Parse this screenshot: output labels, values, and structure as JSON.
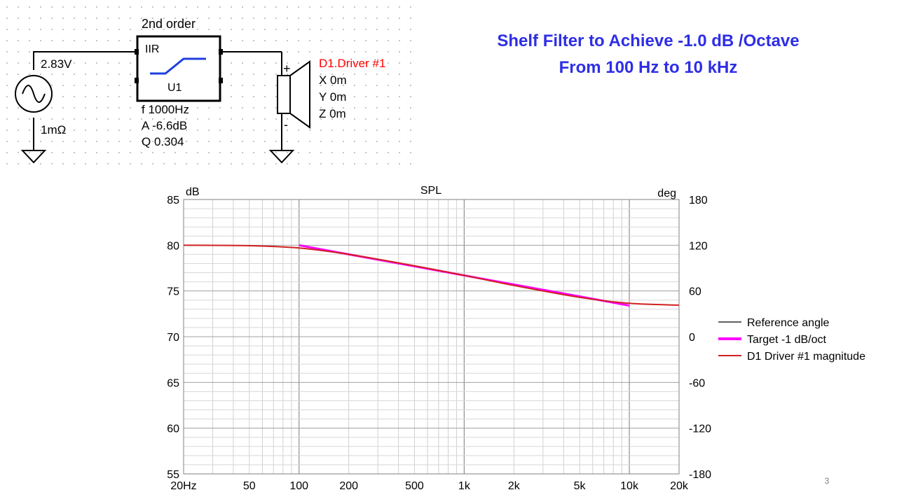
{
  "slide": {
    "title_line1": "Shelf Filter to Achieve -1.0 dB /Octave",
    "title_line2": "From 100 Hz to 10 kHz",
    "page_number": "3"
  },
  "schematic": {
    "filter_order_label": "2nd order",
    "filter_type_label": "IIR",
    "filter_ref": "U1",
    "filter_params": [
      "f  1000Hz",
      "A  -6.6dB",
      "Q  0.304"
    ],
    "source_voltage": "2.83V",
    "source_impedance": "1mΩ",
    "driver_name": "D1.Driver #1",
    "driver_coords": [
      "X  0m",
      "Y  0m",
      "Z  0m"
    ],
    "plus_sign": "+",
    "minus_sign": "-",
    "colors": {
      "filter_curve": "#1f3fe0",
      "driver_label": "#ff0000",
      "wire": "#000000"
    }
  },
  "chart_data": {
    "type": "line",
    "title": "SPL",
    "ylabel_left": "dB",
    "ylabel_right": "deg",
    "x_scale": "log",
    "xlim": [
      20,
      20000
    ],
    "ylim_left": [
      55,
      85
    ],
    "ylim_right": [
      -180,
      180
    ],
    "x_tick_values": [
      20,
      50,
      100,
      200,
      500,
      1000,
      2000,
      5000,
      10000,
      20000
    ],
    "x_tick_labels": [
      "20Hz",
      "50",
      "100",
      "200",
      "500",
      "1k",
      "2k",
      "5k",
      "10k",
      "20k"
    ],
    "y_left_ticks": [
      85,
      80,
      75,
      70,
      65,
      60,
      55
    ],
    "y_right_ticks": [
      180,
      120,
      60,
      0,
      -60,
      -120,
      -180
    ],
    "grid": true,
    "legend_position": "right",
    "series": [
      {
        "name": "Reference angle",
        "color": "#606060",
        "points": []
      },
      {
        "name": "Target -1 dB/oct",
        "color": "#ff00ff",
        "points": [
          [
            100,
            80.0
          ],
          [
            200,
            79.0
          ],
          [
            500,
            77.7
          ],
          [
            1000,
            76.7
          ],
          [
            2000,
            75.7
          ],
          [
            5000,
            74.4
          ],
          [
            10000,
            73.4
          ]
        ]
      },
      {
        "name": "D1 Driver #1 magnitude",
        "color": "#d02020",
        "points": [
          [
            20,
            80.0
          ],
          [
            50,
            79.95
          ],
          [
            100,
            79.7
          ],
          [
            200,
            79.0
          ],
          [
            500,
            77.75
          ],
          [
            1000,
            76.7
          ],
          [
            2000,
            75.6
          ],
          [
            5000,
            74.3
          ],
          [
            10000,
            73.65
          ],
          [
            20000,
            73.45
          ]
        ]
      }
    ]
  }
}
